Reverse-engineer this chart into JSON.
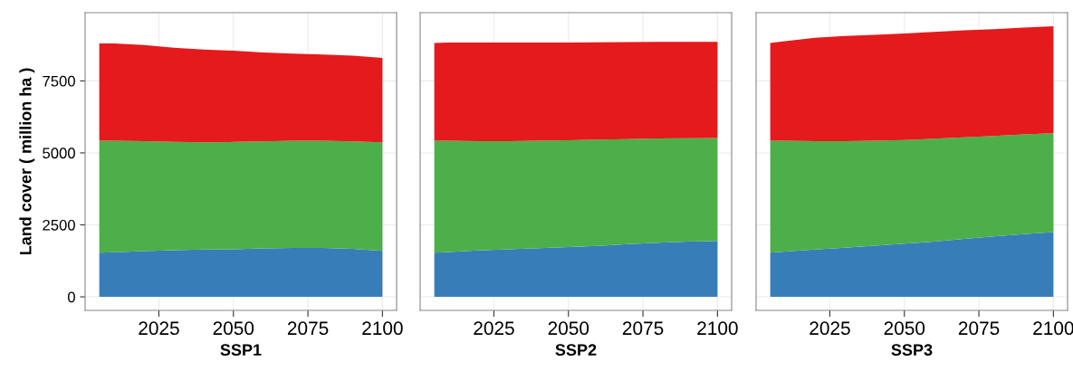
{
  "chart_data": [
    {
      "type": "area",
      "stacked": true,
      "xlabel": "SSP1",
      "ylabel": "Land cover ( million ha )",
      "x": [
        2005,
        2010,
        2020,
        2030,
        2040,
        2050,
        2060,
        2070,
        2080,
        2090,
        2100
      ],
      "xlim": [
        2000.25,
        2104.75
      ],
      "xticks": [
        2025,
        2050,
        2075,
        2100
      ],
      "ylim": [
        -470,
        9870
      ],
      "yticks": [
        0,
        2500,
        5000,
        7500
      ],
      "grid": true,
      "series": [
        {
          "color": "#377eb8",
          "values": [
            1530,
            1550,
            1590,
            1620,
            1640,
            1650,
            1680,
            1700,
            1700,
            1670,
            1600
          ]
        },
        {
          "color": "#4daf4a",
          "values": [
            3890,
            3870,
            3820,
            3760,
            3730,
            3730,
            3720,
            3720,
            3720,
            3730,
            3770
          ]
        },
        {
          "color": "#e41a1c",
          "values": [
            3380,
            3380,
            3340,
            3270,
            3220,
            3170,
            3090,
            3030,
            3000,
            2980,
            2930
          ]
        }
      ]
    },
    {
      "type": "area",
      "stacked": true,
      "xlabel": "SSP2",
      "x": [
        2005,
        2010,
        2020,
        2030,
        2040,
        2050,
        2060,
        2070,
        2080,
        2090,
        2100
      ],
      "xlim": [
        2000.25,
        2104.75
      ],
      "xticks": [
        2025,
        2050,
        2075,
        2100
      ],
      "ylim": [
        -470,
        9870
      ],
      "yticks": [
        0,
        2500,
        5000,
        7500
      ],
      "grid": true,
      "tick_labels": "x",
      "series": [
        {
          "color": "#377eb8",
          "values": [
            1530,
            1560,
            1610,
            1650,
            1690,
            1730,
            1770,
            1830,
            1880,
            1920,
            1940
          ]
        },
        {
          "color": "#4daf4a",
          "values": [
            3890,
            3860,
            3800,
            3760,
            3730,
            3710,
            3690,
            3650,
            3620,
            3590,
            3580
          ]
        },
        {
          "color": "#e41a1c",
          "values": [
            3400,
            3410,
            3420,
            3420,
            3410,
            3390,
            3380,
            3370,
            3360,
            3350,
            3340
          ]
        }
      ]
    },
    {
      "type": "area",
      "stacked": true,
      "xlabel": "SSP3",
      "x": [
        2005,
        2010,
        2020,
        2030,
        2040,
        2050,
        2060,
        2070,
        2080,
        2090,
        2100
      ],
      "xlim": [
        2000.25,
        2104.75
      ],
      "xticks": [
        2025,
        2050,
        2075,
        2100
      ],
      "ylim": [
        -470,
        9870
      ],
      "yticks": [
        0,
        2500,
        5000,
        7500
      ],
      "grid": true,
      "tick_labels": "x",
      "series": [
        {
          "color": "#377eb8",
          "values": [
            1530,
            1570,
            1640,
            1710,
            1780,
            1850,
            1920,
            2010,
            2100,
            2180,
            2250
          ]
        },
        {
          "color": "#4daf4a",
          "values": [
            3890,
            3850,
            3770,
            3700,
            3640,
            3600,
            3570,
            3530,
            3490,
            3460,
            3430
          ]
        },
        {
          "color": "#e41a1c",
          "values": [
            3400,
            3460,
            3590,
            3650,
            3680,
            3700,
            3710,
            3720,
            3710,
            3710,
            3720
          ]
        }
      ]
    }
  ]
}
